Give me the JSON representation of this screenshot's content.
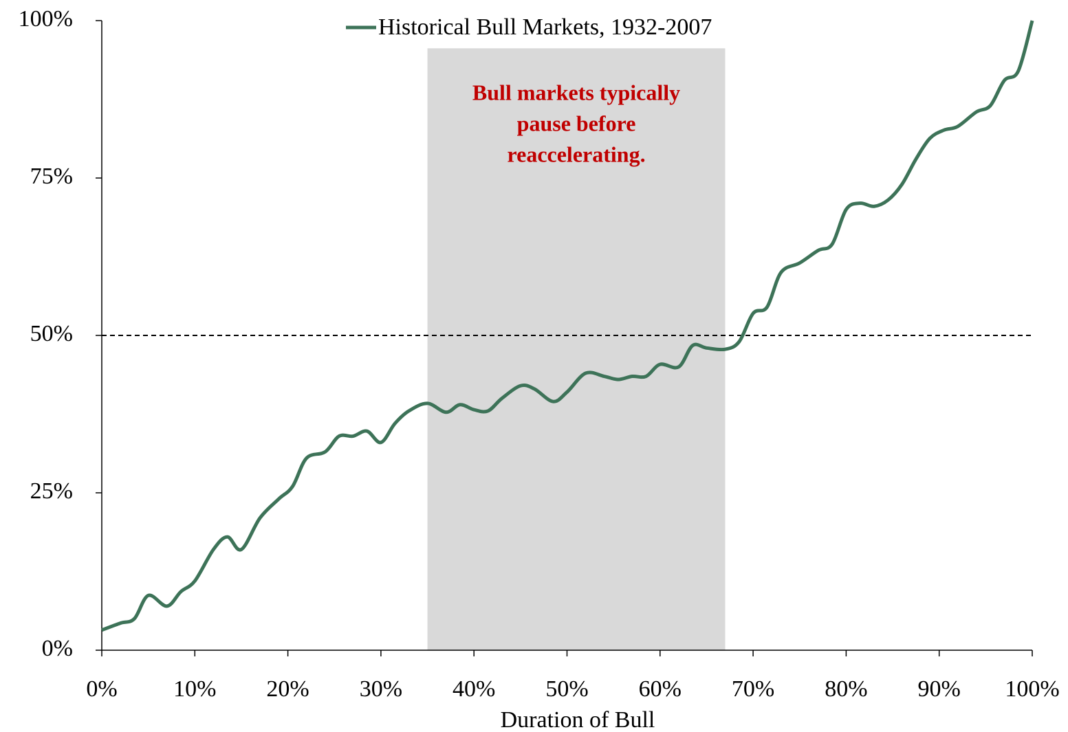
{
  "chart_data": {
    "type": "line",
    "x_label": "Duration of Bull",
    "x": [
      0,
      2,
      3.5,
      5,
      7,
      8.5,
      10,
      12,
      13.5,
      15,
      17,
      19,
      20.5,
      22,
      24,
      25.5,
      27,
      28.5,
      30,
      31.5,
      33,
      35,
      37,
      38.5,
      40,
      41.5,
      43,
      45,
      46.5,
      48.5,
      50,
      52,
      54,
      55.5,
      57,
      58.5,
      60,
      62,
      63.5,
      65,
      67,
      68.5,
      70,
      71.5,
      73,
      75,
      77,
      78.5,
      80,
      81.5,
      83,
      84.5,
      86,
      87.5,
      89,
      90.5,
      92,
      94,
      95.5,
      97,
      98.5,
      100
    ],
    "series": [
      {
        "name": "Historical Bull Markets, 1932-2007",
        "color": "#3d7358",
        "values": [
          3.2,
          4.3,
          5,
          8.7,
          7,
          9.3,
          11,
          16,
          18,
          16,
          21,
          24,
          26,
          30.5,
          31.5,
          34,
          34,
          34.8,
          33,
          36,
          38,
          39.2,
          37.8,
          39,
          38.2,
          38,
          40,
          42,
          41.5,
          39.5,
          41,
          44,
          43.5,
          43,
          43.5,
          43.5,
          45.4,
          45,
          48.4,
          48,
          47.8,
          49,
          53.5,
          54.5,
          60,
          61.5,
          63.5,
          64.5,
          70,
          71,
          70.5,
          71.5,
          74,
          78,
          81.3,
          82.6,
          83.2,
          85.5,
          86.5,
          90.5,
          92,
          100
        ]
      }
    ],
    "xlim": [
      0,
      100
    ],
    "ylim": [
      0,
      100
    ],
    "xticks": [
      {
        "value": 0,
        "label": "0%"
      },
      {
        "value": 10,
        "label": "10%"
      },
      {
        "value": 20,
        "label": "20%"
      },
      {
        "value": 30,
        "label": "30%"
      },
      {
        "value": 40,
        "label": "40%"
      },
      {
        "value": 50,
        "label": "50%"
      },
      {
        "value": 60,
        "label": "60%"
      },
      {
        "value": 70,
        "label": "70%"
      },
      {
        "value": 80,
        "label": "80%"
      },
      {
        "value": 90,
        "label": "90%"
      },
      {
        "value": 100,
        "label": "100%"
      }
    ],
    "yticks": [
      {
        "value": 0,
        "label": "0%"
      },
      {
        "value": 25,
        "label": "25%"
      },
      {
        "value": 50,
        "label": "50%"
      },
      {
        "value": 75,
        "label": "75%"
      },
      {
        "value": 100,
        "label": "100%"
      }
    ],
    "reference_line": 50,
    "highlight": {
      "xrange": [
        35,
        67
      ],
      "yrange": [
        0,
        95.6
      ],
      "color": "#d9d9d9"
    },
    "annotation": [
      "Bull markets typically",
      "pause before",
      "reaccelerating."
    ],
    "legend": "top",
    "grid": false
  }
}
